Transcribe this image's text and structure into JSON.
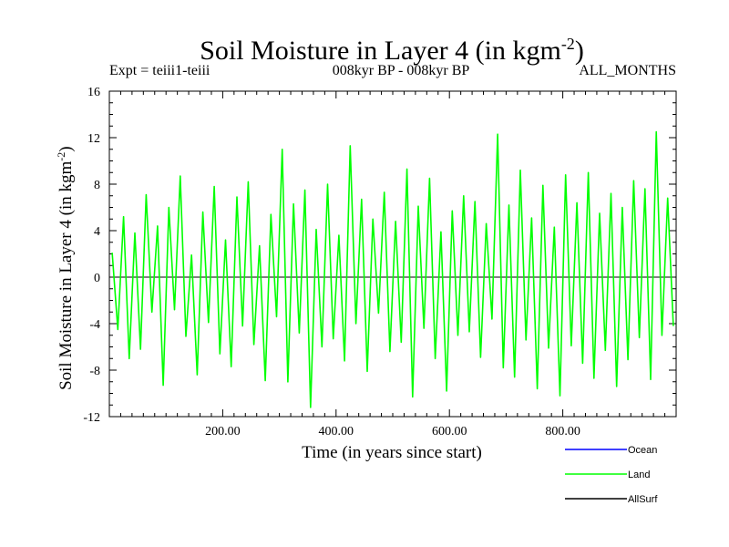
{
  "title": {
    "main": "Soil Moisture in Layer 4 (in kgm",
    "sup": "-2",
    "close": ")"
  },
  "subtitles": {
    "left": "Expt = teiii1-teiii",
    "center": "008kyr BP - 008kyr BP",
    "right": "ALL_MONTHS"
  },
  "colors": {
    "ocean": "#0000ff",
    "land": "#00ff00",
    "allsurf": "#000000"
  },
  "chart_data": {
    "type": "line",
    "title": "Soil Moisture in Layer 4 (in kgm-2)",
    "xlabel": "Time (in years since start)",
    "ylabel": "Soil Moisture in Layer 4 (in kgm-2)",
    "ylabel_parts": {
      "main": "Soil Moisture in Layer 4 (in kgm",
      "sup": "-2",
      "close": ")"
    },
    "xlim": [
      0,
      1000
    ],
    "ylim": [
      -12,
      16
    ],
    "xticks": [
      200,
      400,
      600,
      800
    ],
    "xtick_labels": [
      "200.00",
      "400.00",
      "600.00",
      "800.00"
    ],
    "yticks": [
      -12,
      -8,
      -4,
      0,
      4,
      8,
      12,
      16
    ],
    "ytick_labels": [
      "-12",
      "-8",
      "-4",
      "0",
      "4",
      "8",
      "12",
      "16"
    ],
    "zero_line": true,
    "grid": false,
    "legend_position": "bottom-right",
    "series": [
      {
        "name": "Ocean",
        "color": "#0000ff",
        "values": []
      },
      {
        "name": "Land",
        "color": "#00ff00",
        "note_values_sampled_every_10_years": true,
        "x_step": 10,
        "values": [
          2.1,
          -4.5,
          5.2,
          -7.0,
          3.8,
          -6.2,
          7.1,
          -3.0,
          4.4,
          -9.3,
          6.0,
          -2.8,
          8.7,
          -5.1,
          1.9,
          -8.4,
          5.6,
          -3.9,
          7.8,
          -6.6,
          3.2,
          -7.7,
          6.9,
          -4.2,
          8.2,
          -5.8,
          2.7,
          -8.9,
          5.4,
          -3.4,
          11.0,
          -9.0,
          6.3,
          -4.8,
          7.5,
          -11.2,
          4.1,
          -6.0,
          8.0,
          -5.3,
          3.6,
          -7.2,
          11.3,
          -4.0,
          6.7,
          -8.1,
          5.0,
          -3.1,
          7.3,
          -6.4,
          4.8,
          -5.6,
          9.3,
          -10.3,
          6.1,
          -4.4,
          8.5,
          -7.0,
          3.9,
          -9.8,
          5.7,
          -5.0,
          7.0,
          -4.7,
          6.5,
          -6.9,
          4.6,
          -3.6,
          12.3,
          -7.8,
          6.2,
          -8.6,
          9.2,
          -5.4,
          5.1,
          -9.6,
          7.9,
          -6.1,
          4.3,
          -10.2,
          8.8,
          -5.9,
          6.4,
          -7.4,
          9.0,
          -8.7,
          5.5,
          -6.3,
          7.2,
          -9.4,
          6.0,
          -7.1,
          8.3,
          -5.2,
          7.6,
          -8.8,
          12.5,
          -5.0,
          6.8,
          -4.2
        ]
      },
      {
        "name": "AllSurf",
        "color": "#000000",
        "values": []
      }
    ]
  }
}
